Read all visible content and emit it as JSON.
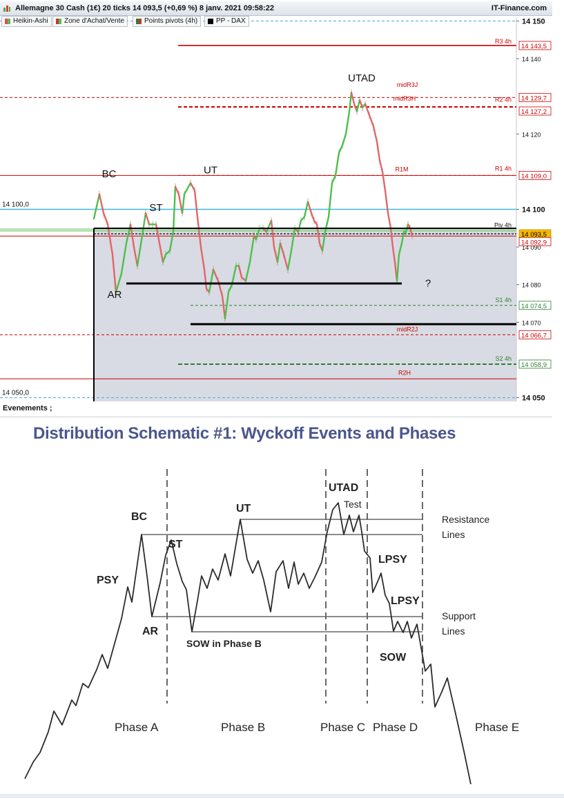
{
  "window": {
    "title": "Allemagne 30 Cash (1€) 20 ticks 14 093,5 (+0,69 %) 8 janv. 2021 09:58:22",
    "source": "IT-Finance.com"
  },
  "legend": [
    {
      "label": "Heikin-Ashi",
      "color": "#d9534f"
    },
    {
      "label": "Zone d'Achat/Vente",
      "color": "#c0392b"
    },
    {
      "label": "Points pivots (4h)",
      "color": "#2e7d32"
    },
    {
      "label": "PP - DAX",
      "color": "#000000"
    }
  ],
  "chart_data": [
    {
      "type": "line",
      "title": "Allemagne 30 Cash (1€) 20 ticks",
      "series": [
        {
          "name": "Heikin-Ashi",
          "points": [
            [
              0,
              14097.5
            ],
            [
              8,
              14104
            ],
            [
              14,
              14099
            ],
            [
              20,
              14096
            ],
            [
              27,
              14088
            ],
            [
              32,
              14078
            ],
            [
              40,
              14083
            ],
            [
              47,
              14091
            ],
            [
              53,
              14096
            ],
            [
              58,
              14090
            ],
            [
              63,
              14085
            ],
            [
              70,
              14093
            ],
            [
              75,
              14099
            ],
            [
              80,
              14096
            ],
            [
              85,
              14096
            ],
            [
              90,
              14096
            ],
            [
              96,
              14090
            ],
            [
              100,
              14086
            ],
            [
              104,
              14088
            ],
            [
              110,
              14089
            ],
            [
              115,
              14094
            ],
            [
              118,
              14106
            ],
            [
              123,
              14104
            ],
            [
              128,
              14099
            ],
            [
              131,
              14104
            ],
            [
              140,
              14107
            ],
            [
              146,
              14105
            ],
            [
              150,
              14098
            ],
            [
              155,
              14090
            ],
            [
              160,
              14084
            ],
            [
              163,
              14079
            ],
            [
              167,
              14078
            ],
            [
              173,
              14084
            ],
            [
              180,
              14081
            ],
            [
              186,
              14077
            ],
            [
              190,
              14071
            ],
            [
              195,
              14078
            ],
            [
              200,
              14080
            ],
            [
              206,
              14085
            ],
            [
              210,
              14085
            ],
            [
              214,
              14082
            ],
            [
              220,
              14081
            ],
            [
              226,
              14086
            ],
            [
              232,
              14093
            ],
            [
              235,
              14092
            ],
            [
              240,
              14095
            ],
            [
              245,
              14095
            ],
            [
              250,
              14094
            ],
            [
              257,
              14097
            ],
            [
              261,
              14090
            ],
            [
              266,
              14086
            ],
            [
              270,
              14091
            ],
            [
              275,
              14088
            ],
            [
              281,
              14084
            ],
            [
              286,
              14089
            ],
            [
              291,
              14095
            ],
            [
              296,
              14094
            ],
            [
              300,
              14097
            ],
            [
              305,
              14098
            ],
            [
              310,
              14102
            ],
            [
              315,
              14099
            ],
            [
              319,
              14097
            ],
            [
              323,
              14096
            ],
            [
              327,
              14091
            ],
            [
              331,
              14089
            ],
            [
              335,
              14094
            ],
            [
              340,
              14098
            ],
            [
              345,
              14107
            ],
            [
              350,
              14109
            ],
            [
              355,
              14115
            ],
            [
              360,
              14117
            ],
            [
              365,
              14120
            ],
            [
              370,
              14126
            ],
            [
              373,
              14131
            ],
            [
              377,
              14128
            ],
            [
              381,
              14126
            ],
            [
              385,
              14129
            ],
            [
              389,
              14127
            ],
            [
              393,
              14128
            ],
            [
              399,
              14125
            ],
            [
              405,
              14122
            ],
            [
              410,
              14118
            ],
            [
              414,
              14113
            ],
            [
              418,
              14110
            ],
            [
              422,
              14105
            ],
            [
              426,
              14099
            ],
            [
              430,
              14095
            ],
            [
              433,
              14090
            ],
            [
              436,
              14086
            ],
            [
              439,
              14081
            ],
            [
              442,
              14088
            ],
            [
              446,
              14091
            ],
            [
              449,
              14094
            ],
            [
              452,
              14094
            ],
            [
              455,
              14096
            ],
            [
              458,
              14095
            ],
            [
              461,
              14093
            ]
          ]
        }
      ],
      "x_labels": [
        "BC",
        "ST",
        "UT",
        "UTAD",
        "AR",
        "?"
      ],
      "annotations": [
        "BC",
        "ST",
        "UT",
        "UTAD",
        "AR",
        "?"
      ],
      "levels": [
        {
          "label": "R3 4h",
          "value": "14 143,5",
          "color": "#cc0000"
        },
        {
          "label": "midR3J",
          "value": "14 129,7",
          "color": "#cc0000"
        },
        {
          "label": "midR3H",
          "value": "14 127,2",
          "color": "#cc0000"
        },
        {
          "label": "R2 4h",
          "value": "14 127,7",
          "color": "#cc0000"
        },
        {
          "label": "R1M",
          "value": "14 109,0",
          "color": "#cc0000"
        },
        {
          "label": "R1 4h",
          "value": "14 109,0",
          "color": "#cc0000"
        },
        {
          "label": "Piv 4h",
          "value": "14 093,5",
          "color": "#000000"
        },
        {
          "label": "S1 4h",
          "value": "14 074,5",
          "color": "#2e7d32"
        },
        {
          "label": "midR2J",
          "value": "14 066,7",
          "color": "#cc0000"
        },
        {
          "label": "S2 4h",
          "value": "14 058,9",
          "color": "#2e7d32"
        },
        {
          "label": "R2H",
          "value": "14 055,0",
          "color": "#cc0000"
        }
      ],
      "left_labels": [
        "14 100,0",
        "14 050,0"
      ],
      "y_ticks": [
        "14 150",
        "14 140",
        "14 120",
        "14 100",
        "14 090",
        "14 080",
        "14 070",
        "14 050"
      ],
      "price_tags": [
        "14 143,5",
        "14 129,7",
        "14 127,2",
        "14 109,0",
        "14 093,5",
        "14 092,9",
        "14 074,5",
        "14 066,7",
        "14 058,9"
      ],
      "ylim": [
        14049,
        14151
      ]
    }
  ],
  "events_label": "Evenements ;",
  "schematic": {
    "title": "Distribution Schematic #1: Wyckoff Events and Phases",
    "labels": [
      "PSY",
      "BC",
      "AR",
      "ST",
      "SOW in Phase B",
      "UT",
      "UTAD",
      "Test",
      "LPSY",
      "LPSY",
      "SOW"
    ],
    "lines": [
      "Resistance",
      "Lines",
      "Support",
      "Lines"
    ],
    "phases": [
      "Phase A",
      "Phase B",
      "Phase C",
      "Phase D",
      "Phase E"
    ]
  }
}
